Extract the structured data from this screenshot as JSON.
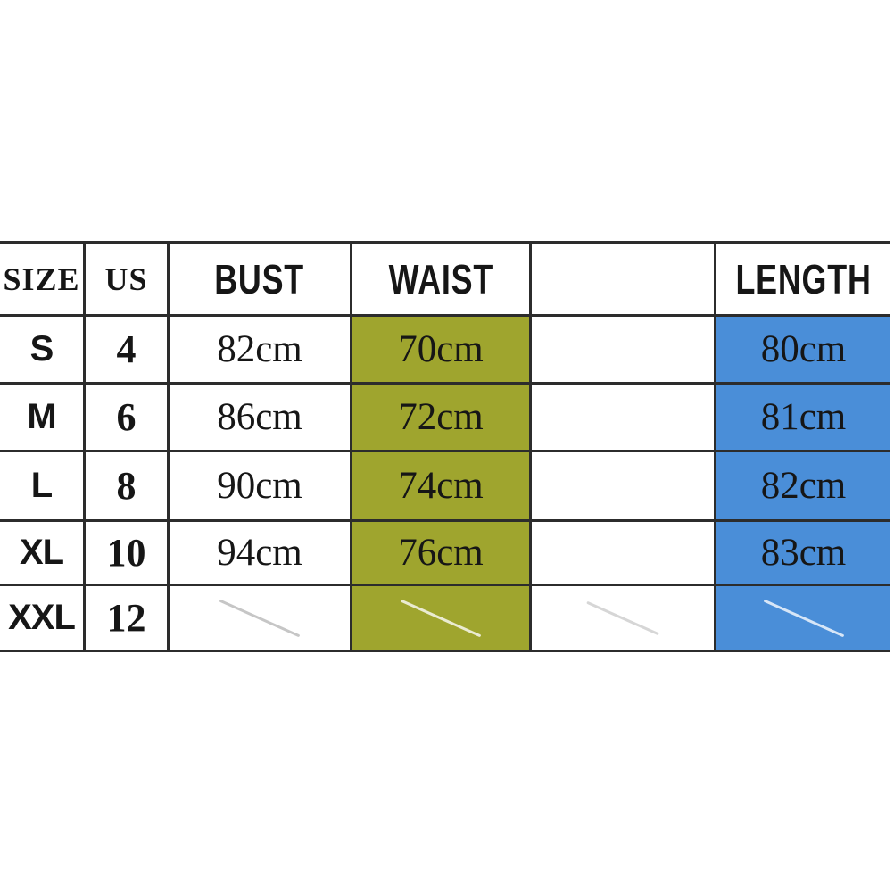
{
  "colors": {
    "page-bg": "#ffffff",
    "border": "#2c2c2c",
    "waist-bg": "#9fa52e",
    "length-bg": "#4a8ed8",
    "text": "#161616"
  },
  "table": {
    "headers": [
      "SIZE",
      "US",
      "BUST",
      "WAIST",
      "",
      "LENGTH"
    ],
    "rows": [
      {
        "size": "S",
        "us": "4",
        "bust": "82cm",
        "waist": "70cm",
        "unlabeled": "",
        "length": "80cm",
        "crossed_out": false
      },
      {
        "size": "M",
        "us": "6",
        "bust": "86cm",
        "waist": "72cm",
        "unlabeled": "",
        "length": "81cm",
        "crossed_out": false
      },
      {
        "size": "L",
        "us": "8",
        "bust": "90cm",
        "waist": "74cm",
        "unlabeled": "",
        "length": "82cm",
        "crossed_out": false
      },
      {
        "size": "XL",
        "us": "10",
        "bust": "94cm",
        "waist": "76cm",
        "unlabeled": "",
        "length": "83cm",
        "crossed_out": false
      },
      {
        "size": "XXL",
        "us": "12",
        "bust": "",
        "waist": "",
        "unlabeled": "",
        "length": "",
        "crossed_out": true
      }
    ]
  },
  "chart_data": {
    "type": "table",
    "title": "Garment size chart (cm)",
    "columns": [
      "SIZE",
      "US",
      "BUST",
      "WAIST",
      "",
      "LENGTH"
    ],
    "rows": [
      [
        "S",
        "4",
        "82cm",
        "70cm",
        "",
        "80cm"
      ],
      [
        "M",
        "6",
        "86cm",
        "72cm",
        "",
        "81cm"
      ],
      [
        "L",
        "8",
        "90cm",
        "74cm",
        "",
        "82cm"
      ],
      [
        "XL",
        "10",
        "94cm",
        "76cm",
        "",
        "83cm"
      ],
      [
        "XXL",
        "12",
        "",
        "",
        "",
        ""
      ]
    ],
    "notes": "XXL measurement cells contain diagonal slash marks (no values); WAIST column shaded olive, LENGTH column shaded blue; fifth column has no header and no values"
  }
}
